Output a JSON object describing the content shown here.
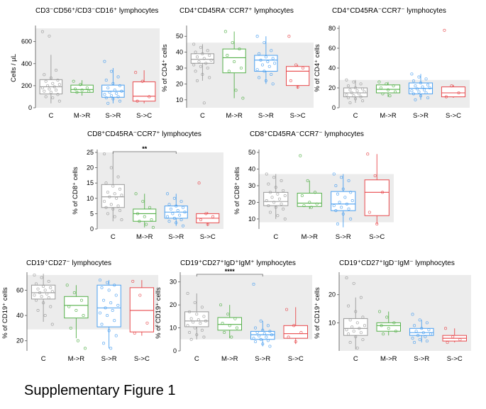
{
  "figure_caption": "Supplementary Figure 1",
  "colors": {
    "C": "#9a9a9a",
    "M->R": "#55b04a",
    "S->R": "#4a9ff0",
    "S->C": "#e8494c",
    "band": "#ececec"
  },
  "chart_data": [
    {
      "type": "box",
      "title": "CD3⁻CD56⁺/CD3⁻CD16⁺ lymphocytes",
      "ylabel": "Cells / µL",
      "ylim": [
        0,
        720
      ],
      "yticks": [
        0,
        200,
        400,
        600
      ],
      "band": [
        0,
        720
      ],
      "categories": [
        "C",
        "M->R",
        "S->R",
        "S->C"
      ],
      "boxes": [
        {
          "group": "C",
          "min": 40,
          "q1": 125,
          "median": 190,
          "q3": 255,
          "max": 480
        },
        {
          "group": "M->R",
          "min": 110,
          "q1": 140,
          "median": 165,
          "q3": 205,
          "max": 250
        },
        {
          "group": "S->R",
          "min": 40,
          "q1": 95,
          "median": 150,
          "q3": 205,
          "max": 360
        },
        {
          "group": "S->C",
          "min": 40,
          "q1": 60,
          "median": 105,
          "q3": 235,
          "max": 340
        }
      ],
      "points": [
        [
          690,
          650,
          340,
          300,
          270,
          250,
          240,
          220,
          210,
          200,
          190,
          180,
          170,
          160,
          150,
          140,
          120,
          100,
          90,
          60
        ],
        [
          240,
          210,
          180,
          170,
          160,
          150,
          140
        ],
        [
          420,
          330,
          280,
          250,
          220,
          200,
          180,
          160,
          150,
          140,
          130,
          120,
          110,
          100,
          90,
          80,
          60,
          40
        ],
        [
          320,
          240,
          100,
          60
        ]
      ],
      "significance": null
    },
    {
      "type": "box",
      "title": "CD4⁺CD45RA⁻CCR7⁺ lymphocytes",
      "ylabel": "% of CD4⁺ cells",
      "ylim": [
        5,
        55
      ],
      "yticks": [
        10,
        20,
        30,
        40,
        50
      ],
      "band": [
        5,
        46
      ],
      "categories": [
        "C",
        "M->R",
        "S->R",
        "S->C"
      ],
      "boxes": [
        {
          "group": "C",
          "min": 22,
          "q1": 33,
          "median": 35.5,
          "q3": 39,
          "max": 45
        },
        {
          "group": "M->R",
          "min": 11,
          "q1": 27,
          "median": 36.5,
          "q3": 42,
          "max": 53
        },
        {
          "group": "S->R",
          "min": 20,
          "q1": 28,
          "median": 35,
          "q3": 38,
          "max": 50
        },
        {
          "group": "S->C",
          "min": 17,
          "q1": 19,
          "median": 28,
          "q3": 31,
          "max": 32
        }
      ],
      "points": [
        [
          45,
          43,
          41,
          40,
          39,
          38,
          37,
          36,
          35,
          34,
          33,
          32,
          31,
          30,
          28,
          26,
          24,
          22,
          8
        ],
        [
          53,
          46,
          42,
          38,
          34,
          30,
          28,
          16,
          11
        ],
        [
          50,
          46,
          41,
          39,
          37,
          36,
          35,
          34,
          33,
          32,
          31,
          29,
          28,
          26,
          24,
          22,
          20
        ],
        [
          50,
          32,
          30,
          22,
          18
        ]
      ],
      "significance": null
    },
    {
      "type": "box",
      "title": "CD4⁺CD45RA⁻CCR7⁻ lymphocytes",
      "ylabel": "% of CD4⁺ cells",
      "ylim": [
        0,
        80
      ],
      "yticks": [
        0,
        20,
        40,
        60,
        80
      ],
      "band": [
        0,
        28
      ],
      "categories": [
        "C",
        "M->R",
        "S->R",
        "S->C"
      ],
      "boxes": [
        {
          "group": "C",
          "min": 5,
          "q1": 11,
          "median": 15,
          "q3": 20,
          "max": 28
        },
        {
          "group": "M->R",
          "min": 11,
          "q1": 15,
          "median": 18.5,
          "q3": 23,
          "max": 26
        },
        {
          "group": "S->R",
          "min": 8,
          "q1": 14,
          "median": 19.5,
          "q3": 25,
          "max": 34
        },
        {
          "group": "S->C",
          "min": 10,
          "q1": 11,
          "median": 15,
          "q3": 21,
          "max": 23
        }
      ],
      "points": [
        [
          28,
          26,
          24,
          22,
          20,
          19,
          18,
          17,
          16,
          15,
          14,
          13,
          12,
          11,
          10,
          9,
          7,
          5
        ],
        [
          26,
          24,
          22,
          20,
          18,
          16,
          14,
          12
        ],
        [
          34,
          31,
          29,
          27,
          25,
          23,
          22,
          21,
          20,
          19,
          18,
          17,
          16,
          15,
          14,
          12,
          10,
          8
        ],
        [
          78,
          22,
          15,
          11
        ]
      ],
      "significance": null
    },
    {
      "type": "box",
      "title": "CD8⁺CD45RA⁻CCR7⁺ lymphocytes",
      "ylabel": "% of CD8⁺ cells",
      "ylim": [
        0,
        25
      ],
      "yticks": [
        0,
        5,
        10,
        15,
        20,
        25
      ],
      "band": [
        0,
        25
      ],
      "categories": [
        "C",
        "M->R",
        "S->R",
        "S->C"
      ],
      "boxes": [
        {
          "group": "C",
          "min": 2.5,
          "q1": 7,
          "median": 10.5,
          "q3": 14.5,
          "max": 25
        },
        {
          "group": "M->R",
          "min": 0.5,
          "q1": 2.5,
          "median": 5,
          "q3": 6.5,
          "max": 11.5
        },
        {
          "group": "S->R",
          "min": 1,
          "q1": 3.5,
          "median": 5.5,
          "q3": 7.5,
          "max": 11.5
        },
        {
          "group": "S->C",
          "min": 1,
          "q1": 2,
          "median": 3.5,
          "q3": 5,
          "max": 5.5
        }
      ],
      "points": [
        [
          24.5,
          20,
          17,
          15,
          14,
          13,
          12,
          11.5,
          11,
          10.5,
          10,
          9,
          8,
          7.5,
          7,
          6.5,
          6,
          5,
          4,
          3
        ],
        [
          11.5,
          9,
          7,
          5,
          4,
          3,
          2.5,
          1.5,
          0.5
        ],
        [
          11.5,
          10,
          9,
          8,
          7.5,
          7,
          6.5,
          6,
          5.5,
          5,
          4.5,
          4,
          3.5,
          3,
          2.5,
          2,
          1
        ],
        [
          15,
          5,
          4,
          3,
          1.5
        ]
      ],
      "significance": {
        "from": "C",
        "to": "S->R",
        "label": "**"
      }
    },
    {
      "type": "box",
      "title": "CD8⁺CD45RA⁻CCR7⁻ lymphocytes",
      "ylabel": "% of CD8⁺ cells",
      "ylim": [
        4,
        50
      ],
      "yticks": [
        10,
        20,
        30,
        40,
        50
      ],
      "band": [
        8,
        37
      ],
      "categories": [
        "C",
        "M->R",
        "S->R",
        "S->C"
      ],
      "boxes": [
        {
          "group": "C",
          "min": 10,
          "q1": 18,
          "median": 20.5,
          "q3": 26,
          "max": 37
        },
        {
          "group": "M->R",
          "min": 16,
          "q1": 17.5,
          "median": 19.5,
          "q3": 25.5,
          "max": 33
        },
        {
          "group": "S->R",
          "min": 5,
          "q1": 15,
          "median": 19,
          "q3": 26.5,
          "max": 37
        },
        {
          "group": "S->C",
          "min": 7,
          "q1": 12,
          "median": 26,
          "q3": 33.5,
          "max": 49
        }
      ],
      "points": [
        [
          37,
          35,
          33,
          31,
          29,
          27,
          26,
          25,
          24,
          23,
          22,
          21,
          20,
          19,
          18,
          17,
          16,
          14,
          12,
          10
        ],
        [
          48,
          33,
          26,
          24,
          20,
          19,
          18,
          17
        ],
        [
          37,
          35,
          33,
          30,
          28,
          26,
          25,
          23,
          21,
          20,
          19,
          18,
          17,
          16,
          15,
          13,
          10,
          7
        ],
        [
          49,
          36,
          26,
          14,
          7
        ]
      ],
      "significance": null
    },
    {
      "type": "box",
      "title": "CD19⁺CD27⁻ lymphocytes",
      "ylabel": "% of CD19⁺ cells",
      "ylim": [
        12,
        72
      ],
      "yticks": [
        20,
        40,
        60
      ],
      "band": [
        29,
        72
      ],
      "categories": [
        "C",
        "M->R",
        "S->R",
        "S->C"
      ],
      "boxes": [
        {
          "group": "C",
          "min": 35,
          "q1": 53,
          "median": 58,
          "q3": 64,
          "max": 73
        },
        {
          "group": "M->R",
          "min": 22,
          "q1": 38,
          "median": 48,
          "q3": 55,
          "max": 64
        },
        {
          "group": "S->R",
          "min": 14,
          "q1": 31,
          "median": 46,
          "q3": 64,
          "max": 68
        },
        {
          "group": "S->C",
          "min": 24,
          "q1": 27,
          "median": 44,
          "q3": 62,
          "max": 68
        }
      ],
      "points": [
        [
          72,
          70,
          67,
          65,
          63,
          62,
          61,
          60,
          59,
          58,
          57,
          56,
          55,
          54,
          52,
          50,
          47,
          44,
          40,
          33
        ],
        [
          64,
          58,
          52,
          47,
          44,
          40,
          30,
          20,
          14
        ],
        [
          68,
          66,
          64,
          62,
          60,
          56,
          52,
          50,
          48,
          46,
          44,
          42,
          40,
          36,
          33,
          28,
          24,
          18,
          14
        ],
        [
          67,
          56,
          34,
          26
        ]
      ],
      "significance": null
    },
    {
      "type": "box",
      "title": "CD19⁺CD27⁺IgD⁺IgM⁺ lymphocytes",
      "ylabel": "% of CD19⁺ cells",
      "ylim": [
        0,
        33
      ],
      "yticks": [
        0,
        10,
        20,
        30
      ],
      "band": [
        5,
        33
      ],
      "categories": [
        "C",
        "M->R",
        "S->R",
        "S->C"
      ],
      "boxes": [
        {
          "group": "C",
          "min": 5,
          "q1": 10.5,
          "median": 13,
          "q3": 17,
          "max": 25
        },
        {
          "group": "M->R",
          "min": 5.5,
          "q1": 9,
          "median": 11.5,
          "q3": 14.5,
          "max": 20
        },
        {
          "group": "S->R",
          "min": 2,
          "q1": 5,
          "median": 7,
          "q3": 8.5,
          "max": 13
        },
        {
          "group": "S->C",
          "min": 3,
          "q1": 5.5,
          "median": 7.5,
          "q3": 11,
          "max": 19
        }
      ],
      "points": [
        [
          25,
          21,
          19,
          17,
          16,
          15,
          14,
          13.5,
          13,
          12.5,
          12,
          11,
          10,
          9,
          8,
          7,
          6,
          5
        ],
        [
          20,
          16,
          14,
          12,
          11,
          10,
          8,
          6
        ],
        [
          29,
          13,
          11,
          10,
          9,
          8.5,
          8,
          7.5,
          7,
          6.5,
          6,
          5.5,
          5,
          4.5,
          4,
          3,
          2
        ],
        [
          18,
          11,
          8,
          6,
          4
        ]
      ],
      "significance": {
        "from": "C",
        "to": "S->R",
        "label": "****"
      }
    },
    {
      "type": "box",
      "title": "CD19⁺CD27⁺IgD⁻IgM⁻ lymphocytes",
      "ylabel": "% of CD19⁺ cells",
      "ylim": [
        0,
        27
      ],
      "yticks": [
        10,
        20
      ],
      "band": [
        0,
        27
      ],
      "categories": [
        "C",
        "M->R",
        "S->R",
        "S->C"
      ],
      "boxes": [
        {
          "group": "C",
          "min": 0.5,
          "q1": 5.5,
          "median": 8,
          "q3": 11.5,
          "max": 19
        },
        {
          "group": "M->R",
          "min": 5.5,
          "q1": 7,
          "median": 9,
          "q3": 10,
          "max": 14
        },
        {
          "group": "S->R",
          "min": 3,
          "q1": 5.5,
          "median": 6.5,
          "q3": 8,
          "max": 11
        },
        {
          "group": "S->C",
          "min": 3,
          "q1": 3.5,
          "median": 4.5,
          "q3": 5.5,
          "max": 8
        }
      ],
      "points": [
        [
          26,
          24,
          19,
          16,
          14,
          12,
          11,
          10,
          9,
          8.5,
          8,
          7.5,
          7,
          6.5,
          6,
          5,
          4,
          3,
          1
        ],
        [
          14,
          12,
          10,
          9,
          8,
          7,
          6
        ],
        [
          13,
          11,
          10,
          9,
          8,
          7.5,
          7,
          6.5,
          6,
          5.5,
          5,
          4.5,
          4,
          3.5,
          3
        ],
        [
          8,
          5,
          4,
          3
        ]
      ],
      "significance": null
    }
  ]
}
